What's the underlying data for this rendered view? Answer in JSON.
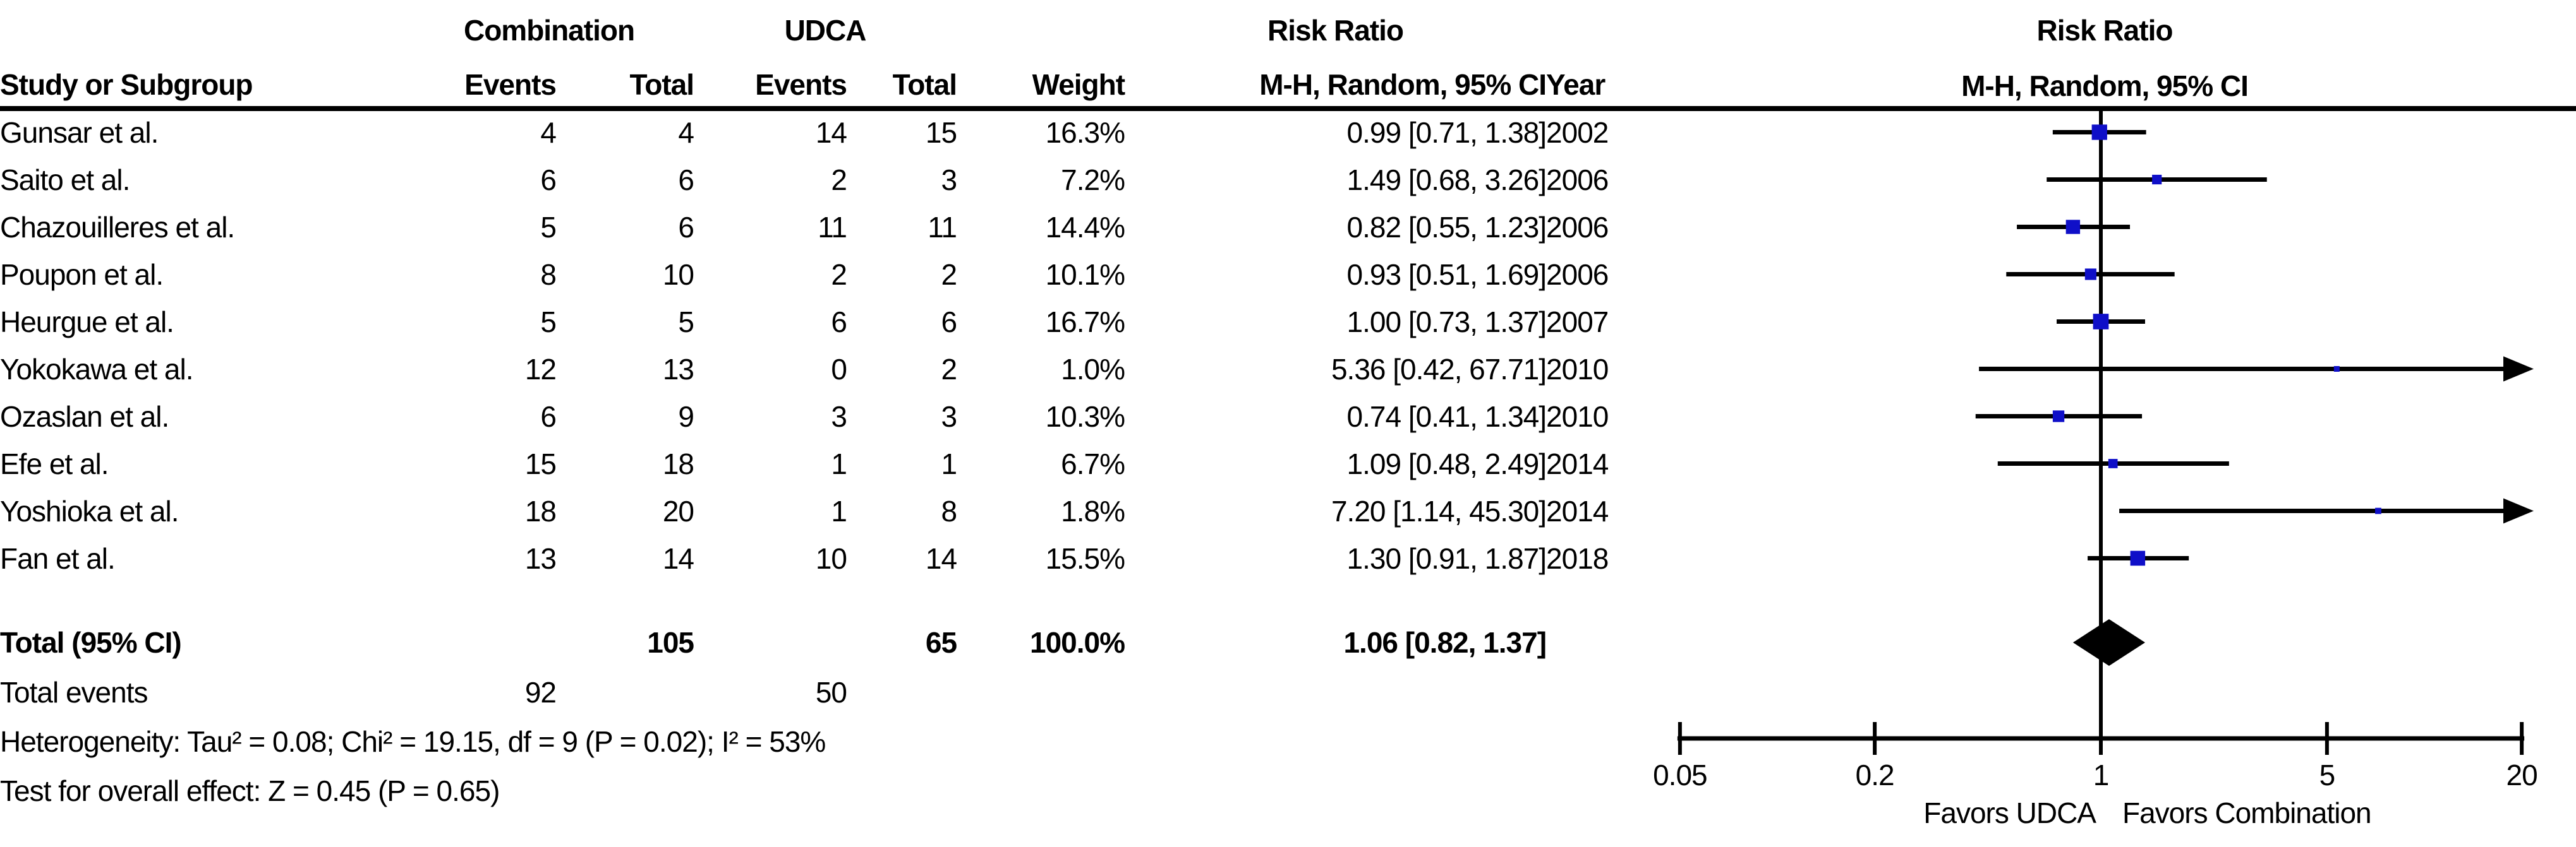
{
  "figure": {
    "background": "#ffffff",
    "text_color": "#000000"
  },
  "table": {
    "group_headers": {
      "combination": "Combination",
      "udca": "UDCA",
      "risk_ratio": "Risk Ratio"
    },
    "headers": {
      "study": "Study or Subgroup",
      "events": "Events",
      "total": "Total",
      "weight": "Weight",
      "ci": "M-H, Random, 95% CI",
      "year": "Year"
    },
    "total_row": {
      "label": "Total (95% CI)",
      "total_comb": "105",
      "total_udca": "65",
      "weight": "100.0%",
      "rr_ci": "1.06 [0.82, 1.37]"
    },
    "total_events": {
      "label": "Total events",
      "comb": "92",
      "udca": "50"
    },
    "heterogeneity_line": "Heterogeneity: Tau² = 0.08; Chi² = 19.15, df = 9 (P = 0.02); I² = 53%",
    "overall_effect_line": "Test for overall effect: Z = 0.45 (P = 0.65)"
  },
  "plot": {
    "header_line1": "Risk Ratio",
    "header_line2": "M-H, Random, 95% CI",
    "tick_labels": [
      "0.05",
      "0.2",
      "1",
      "5",
      "20"
    ],
    "favors_left": "Favors UDCA",
    "favors_right": "Favors Combination",
    "marker_color": "#0f0fc8",
    "line_color": "#000000"
  },
  "chart_data": {
    "type": "forest",
    "x_scale": "log",
    "x_ticks": [
      0.05,
      0.2,
      1,
      5,
      20
    ],
    "x_range": [
      0.05,
      20
    ],
    "effect_label": "Risk Ratio (M-H, Random, 95% CI)",
    "studies": [
      {
        "name": "Gunsar et al.",
        "events_comb": 4,
        "total_comb": 4,
        "events_udca": 14,
        "total_udca": 15,
        "weight_pct": 16.3,
        "rr": 0.99,
        "ci_low": 0.71,
        "ci_high": 1.38,
        "year": 2002
      },
      {
        "name": "Saito et al.",
        "events_comb": 6,
        "total_comb": 6,
        "events_udca": 2,
        "total_udca": 3,
        "weight_pct": 7.2,
        "rr": 1.49,
        "ci_low": 0.68,
        "ci_high": 3.26,
        "year": 2006
      },
      {
        "name": "Chazouilleres et al.",
        "events_comb": 5,
        "total_comb": 6,
        "events_udca": 11,
        "total_udca": 11,
        "weight_pct": 14.4,
        "rr": 0.82,
        "ci_low": 0.55,
        "ci_high": 1.23,
        "year": 2006
      },
      {
        "name": "Poupon et al.",
        "events_comb": 8,
        "total_comb": 10,
        "events_udca": 2,
        "total_udca": 2,
        "weight_pct": 10.1,
        "rr": 0.93,
        "ci_low": 0.51,
        "ci_high": 1.69,
        "year": 2006
      },
      {
        "name": "Heurgue et al.",
        "events_comb": 5,
        "total_comb": 5,
        "events_udca": 6,
        "total_udca": 6,
        "weight_pct": 16.7,
        "rr": 1.0,
        "ci_low": 0.73,
        "ci_high": 1.37,
        "year": 2007
      },
      {
        "name": "Yokokawa et al.",
        "events_comb": 12,
        "total_comb": 13,
        "events_udca": 0,
        "total_udca": 2,
        "weight_pct": 1.0,
        "rr": 5.36,
        "ci_low": 0.42,
        "ci_high": 67.71,
        "year": 2010
      },
      {
        "name": "Ozaslan et al.",
        "events_comb": 6,
        "total_comb": 9,
        "events_udca": 3,
        "total_udca": 3,
        "weight_pct": 10.3,
        "rr": 0.74,
        "ci_low": 0.41,
        "ci_high": 1.34,
        "year": 2010
      },
      {
        "name": "Efe et al.",
        "events_comb": 15,
        "total_comb": 18,
        "events_udca": 1,
        "total_udca": 1,
        "weight_pct": 6.7,
        "rr": 1.09,
        "ci_low": 0.48,
        "ci_high": 2.49,
        "year": 2014
      },
      {
        "name": "Yoshioka et al.",
        "events_comb": 18,
        "total_comb": 20,
        "events_udca": 1,
        "total_udca": 8,
        "weight_pct": 1.8,
        "rr": 7.2,
        "ci_low": 1.14,
        "ci_high": 45.3,
        "year": 2014
      },
      {
        "name": "Fan et al.",
        "events_comb": 13,
        "total_comb": 14,
        "events_udca": 10,
        "total_udca": 14,
        "weight_pct": 15.5,
        "rr": 1.3,
        "ci_low": 0.91,
        "ci_high": 1.87,
        "year": 2018
      }
    ],
    "total": {
      "label": "Total (95% CI)",
      "total_comb": 105,
      "total_udca": 65,
      "weight_pct": 100.0,
      "rr": 1.06,
      "ci_low": 0.82,
      "ci_high": 1.37,
      "total_events_comb": 92,
      "total_events_udca": 50
    },
    "heterogeneity": {
      "tau2": 0.08,
      "chi2": 19.15,
      "df": 9,
      "p": 0.02,
      "i2_pct": 53
    },
    "overall_effect": {
      "z": 0.45,
      "p": 0.65
    },
    "axis_annotations": {
      "left": "Favors UDCA",
      "right": "Favors Combination"
    }
  }
}
